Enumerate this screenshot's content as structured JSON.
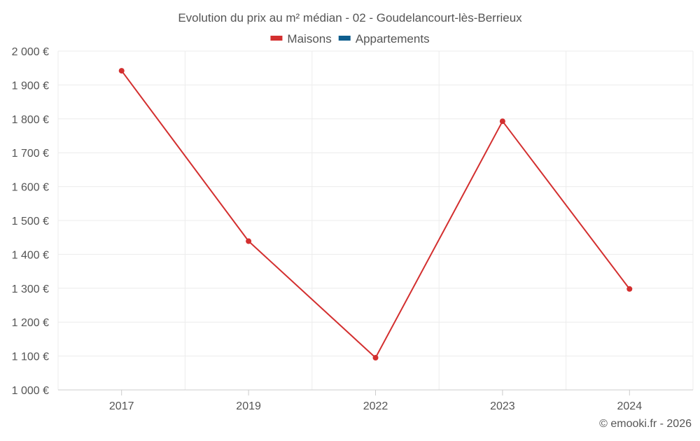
{
  "chart_data": {
    "type": "line",
    "title": "Evolution du prix au m² médian - 02 - Goudelancourt-lès-Berrieux",
    "xlabel": "",
    "ylabel": "",
    "categories": [
      "2017",
      "2019",
      "2022",
      "2023",
      "2024"
    ],
    "series": [
      {
        "name": "Maisons",
        "color": "#d32f2f",
        "values": [
          1942,
          1439,
          1095,
          1793,
          1298
        ]
      },
      {
        "name": "Appartements",
        "color": "#0e5e8e",
        "values": [
          null,
          null,
          null,
          null,
          null
        ]
      }
    ],
    "ylim": [
      1000,
      2000
    ],
    "yticks": [
      1000,
      1100,
      1200,
      1300,
      1400,
      1500,
      1600,
      1700,
      1800,
      1900,
      2000
    ],
    "ytick_labels": [
      "1 000 €",
      "1 100 €",
      "1 200 €",
      "1 300 €",
      "1 400 €",
      "1 500 €",
      "1 600 €",
      "1 700 €",
      "1 800 €",
      "1 900 €",
      "2 000 €"
    ],
    "grid": true,
    "legend_position": "top-center",
    "credit": "© emooki.fr - 2026"
  }
}
